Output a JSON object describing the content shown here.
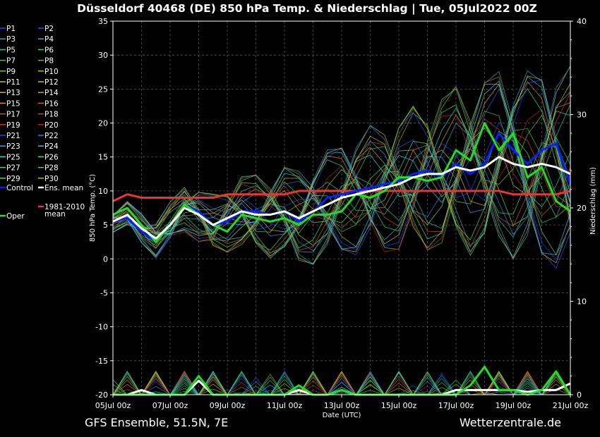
{
  "title": "Düsseldorf 40468 (DE)  850 hPa Temp. & Niederschlag | Tue, 05Jul2022 00Z",
  "footer_left": "GFS Ensemble, 51.5N, 7E",
  "footer_right": "Wetterzentrale.de",
  "colors": {
    "background": "#000000",
    "control": "#0022ff",
    "ens_mean": "#ffffff",
    "climate_mean": "#ee3333",
    "oper": "#22dd22",
    "grid": "#555555"
  },
  "chart_data": {
    "type": "line",
    "xlabel": "Date (UTC)",
    "ylabel_left": "850 hPa Temp. (°C)",
    "ylabel_right": "Niederschlag (mm)",
    "xlim": [
      0,
      16
    ],
    "ylim_left": [
      -20,
      35
    ],
    "ylim_right": [
      0,
      40
    ],
    "grid": true,
    "legend_position": "left-outside",
    "x_tick_labels": [
      "05Jul 00z",
      "07Jul 00z",
      "09Jul 00z",
      "11Jul 00z",
      "13Jul 00z",
      "15Jul 00z",
      "17Jul 00z",
      "19Jul 00z",
      "21Jul 00z"
    ],
    "y_left_ticks": [
      -20,
      -15,
      -10,
      -5,
      0,
      5,
      10,
      15,
      20,
      25,
      30,
      35
    ],
    "y_right_ticks": [
      0,
      10,
      20,
      30,
      40
    ],
    "x_days": [
      0,
      0.5,
      1,
      1.5,
      2,
      2.5,
      3,
      3.5,
      4,
      4.5,
      5,
      5.5,
      6,
      6.5,
      7,
      7.5,
      8,
      8.5,
      9,
      9.5,
      10,
      10.5,
      11,
      11.5,
      12,
      12.5,
      13,
      13.5,
      14,
      14.5,
      15,
      15.5,
      16
    ],
    "series": [
      {
        "name": "Control",
        "color": "#0022ff",
        "values": [
          5.5,
          6,
          4,
          2.5,
          5,
          8,
          7,
          5,
          5.5,
          7,
          7,
          6.5,
          7,
          5.5,
          7,
          9,
          9.5,
          10,
          10.5,
          11,
          11.5,
          12.5,
          13,
          12,
          14,
          12.5,
          14,
          18.5,
          16,
          14,
          16,
          17,
          11
        ]
      },
      {
        "name": "Ens. mean",
        "color": "#ffffff",
        "values": [
          5.5,
          6.5,
          4.5,
          3,
          5,
          7.5,
          6.5,
          5,
          6,
          7,
          6.5,
          6.5,
          7,
          6,
          7,
          8,
          9,
          9.5,
          10,
          10.5,
          11,
          12,
          12.5,
          12.5,
          13.5,
          13,
          13.5,
          15,
          14,
          13.5,
          14,
          13.5,
          12.5
        ]
      },
      {
        "name": "1981-2010 mean",
        "color": "#ee3333",
        "values": [
          8.5,
          9.5,
          9,
          9,
          9,
          9,
          9,
          9,
          9.5,
          9.5,
          9.5,
          9.5,
          9.5,
          10,
          10,
          10,
          10,
          10,
          10,
          10,
          10,
          10,
          10,
          10,
          10,
          10,
          10,
          10,
          9.5,
          9.5,
          9.5,
          9.5,
          10
        ]
      },
      {
        "name": "Oper",
        "color": "#22dd22",
        "values": [
          6.5,
          7.5,
          5,
          2.5,
          5,
          8,
          6.5,
          5,
          4,
          6.5,
          6,
          5.5,
          6,
          5,
          6.5,
          6.5,
          7,
          9.5,
          9,
          10,
          12,
          12,
          11.5,
          12,
          16,
          14.5,
          20,
          16,
          18.5,
          12,
          13.5,
          8.5,
          7
        ]
      }
    ],
    "precip_series": [
      {
        "name": "Ens. mean",
        "color": "#ffffff",
        "values": [
          0,
          0,
          0.5,
          0,
          0,
          0,
          1.5,
          0,
          0,
          0,
          0,
          0,
          0,
          0.5,
          0,
          0,
          0.5,
          0,
          0,
          0,
          0,
          0,
          0,
          0,
          0.5,
          0.5,
          0.5,
          0.5,
          0.5,
          0.3,
          0.5,
          0.5,
          1.2
        ]
      },
      {
        "name": "Oper",
        "color": "#22dd22",
        "values": [
          0,
          0,
          0,
          0,
          0,
          0,
          2,
          0,
          0,
          0,
          0,
          0,
          0,
          1,
          0,
          0,
          0.5,
          0,
          0,
          0,
          0,
          0,
          0,
          0,
          0,
          1,
          3,
          0.5,
          0.5,
          0,
          0.5,
          2.5,
          0
        ]
      }
    ],
    "legend": {
      "members": [
        "P1",
        "P2",
        "P3",
        "P4",
        "P5",
        "P6",
        "P7",
        "P8",
        "P9",
        "P10",
        "P11",
        "P12",
        "P13",
        "P14",
        "P15",
        "P16",
        "P17",
        "P18",
        "P19",
        "P20",
        "P21",
        "P22",
        "P23",
        "P24",
        "P25",
        "P26",
        "P27",
        "P28",
        "P29",
        "P30"
      ],
      "member_colors": [
        "#2244ff",
        "#3355ee",
        "#22aacc",
        "#22bbbb",
        "#22bbaa",
        "#22cc88",
        "#33cc66",
        "#44cc44",
        "#66cc33",
        "#88cc22",
        "#aacc22",
        "#ccbb22",
        "#ddaa22",
        "#dd9922",
        "#dd8822",
        "#cc6622",
        "#cc5522",
        "#cc4422",
        "#cc3322",
        "#bb2222",
        "#2244ee",
        "#2288ee",
        "#22aaee",
        "#22ccee",
        "#22ddcc",
        "#22ddaa",
        "#33dd88",
        "#33dd66",
        "#55dd44",
        "#bbbb22"
      ],
      "extra": [
        "Control",
        "Ens. mean",
        "1981-2010",
        "mean",
        "Oper"
      ]
    }
  }
}
